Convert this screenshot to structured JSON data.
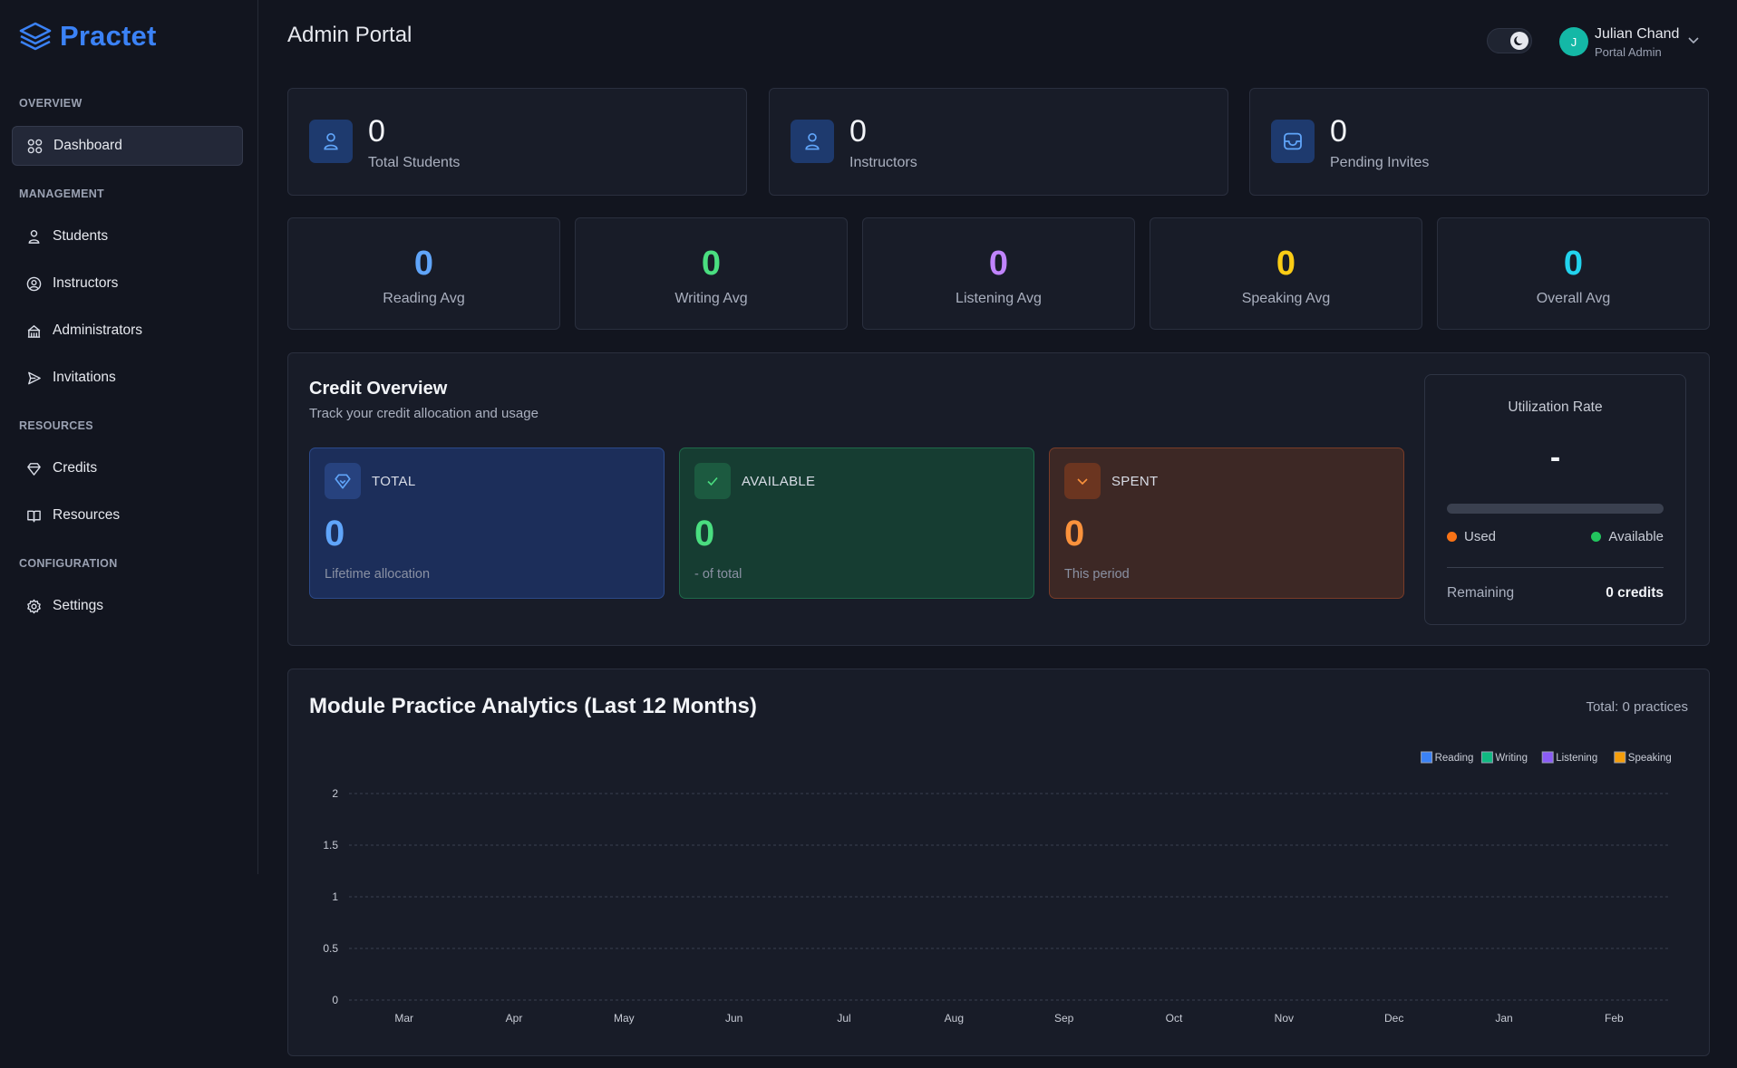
{
  "app": {
    "logo_text": "Practet"
  },
  "sidebar": {
    "sections": [
      {
        "label": "OVERVIEW",
        "items": [
          {
            "label": "Dashboard",
            "icon": "grid-icon",
            "active": true
          }
        ]
      },
      {
        "label": "MANAGEMENT",
        "items": [
          {
            "label": "Students",
            "icon": "user-icon"
          },
          {
            "label": "Instructors",
            "icon": "user-circle-icon"
          },
          {
            "label": "Administrators",
            "icon": "building-icon"
          },
          {
            "label": "Invitations",
            "icon": "send-icon"
          }
        ]
      },
      {
        "label": "RESOURCES",
        "items": [
          {
            "label": "Credits",
            "icon": "gem-icon"
          },
          {
            "label": "Resources",
            "icon": "book-icon"
          }
        ]
      },
      {
        "label": "CONFIGURATION",
        "items": [
          {
            "label": "Settings",
            "icon": "gear-icon"
          }
        ]
      }
    ]
  },
  "header": {
    "title": "Admin Portal",
    "user": {
      "initial": "J",
      "name": "Julian Chand",
      "role": "Portal Admin"
    }
  },
  "stats": [
    {
      "value": "0",
      "label": "Total Students",
      "icon": "user-icon"
    },
    {
      "value": "0",
      "label": "Instructors",
      "icon": "user-icon"
    },
    {
      "value": "0",
      "label": "Pending Invites",
      "icon": "inbox-icon"
    }
  ],
  "averages": [
    {
      "value": "0",
      "label": "Reading Avg",
      "color": "#60a5fa"
    },
    {
      "value": "0",
      "label": "Writing Avg",
      "color": "#4ade80"
    },
    {
      "value": "0",
      "label": "Listening Avg",
      "color": "#c084fc"
    },
    {
      "value": "0",
      "label": "Speaking Avg",
      "color": "#facc15"
    },
    {
      "value": "0",
      "label": "Overall Avg",
      "color": "#22d3ee"
    }
  ],
  "credit_overview": {
    "title": "Credit Overview",
    "subtitle": "Track your credit allocation and usage",
    "boxes": [
      {
        "label": "TOTAL",
        "value": "0",
        "note": "Lifetime allocation",
        "icon": "gem-icon",
        "color": "#60a5fa"
      },
      {
        "label": "AVAILABLE",
        "value": "0",
        "note": "- of total",
        "icon": "check-icon",
        "color": "#4ade80"
      },
      {
        "label": "SPENT",
        "value": "0",
        "note": "This period",
        "icon": "chevron-down-icon",
        "color": "#fb923c"
      }
    ],
    "utilization": {
      "title": "Utilization Rate",
      "value": "-",
      "used_label": "Used",
      "available_label": "Available",
      "remaining_label": "Remaining",
      "remaining_value": "0 credits"
    }
  },
  "analytics": {
    "title": "Module Practice Analytics (Last 12 Months)",
    "total": "Total: 0 practices"
  },
  "chart_data": {
    "type": "bar",
    "categories": [
      "Mar",
      "Apr",
      "May",
      "Jun",
      "Jul",
      "Aug",
      "Sep",
      "Oct",
      "Nov",
      "Dec",
      "Jan",
      "Feb"
    ],
    "series": [
      {
        "name": "Reading",
        "color": "#3b82f6",
        "values": [
          0,
          0,
          0,
          0,
          0,
          0,
          0,
          0,
          0,
          0,
          0,
          0
        ]
      },
      {
        "name": "Writing",
        "color": "#10b981",
        "values": [
          0,
          0,
          0,
          0,
          0,
          0,
          0,
          0,
          0,
          0,
          0,
          0
        ]
      },
      {
        "name": "Listening",
        "color": "#8b5cf6",
        "values": [
          0,
          0,
          0,
          0,
          0,
          0,
          0,
          0,
          0,
          0,
          0,
          0
        ]
      },
      {
        "name": "Speaking",
        "color": "#f59e0b",
        "values": [
          0,
          0,
          0,
          0,
          0,
          0,
          0,
          0,
          0,
          0,
          0,
          0
        ]
      }
    ],
    "yticks": [
      "0",
      "0.5",
      "1",
      "1.5",
      "2"
    ],
    "ylim": [
      0,
      2
    ],
    "grid": true,
    "legend": "top-right"
  }
}
